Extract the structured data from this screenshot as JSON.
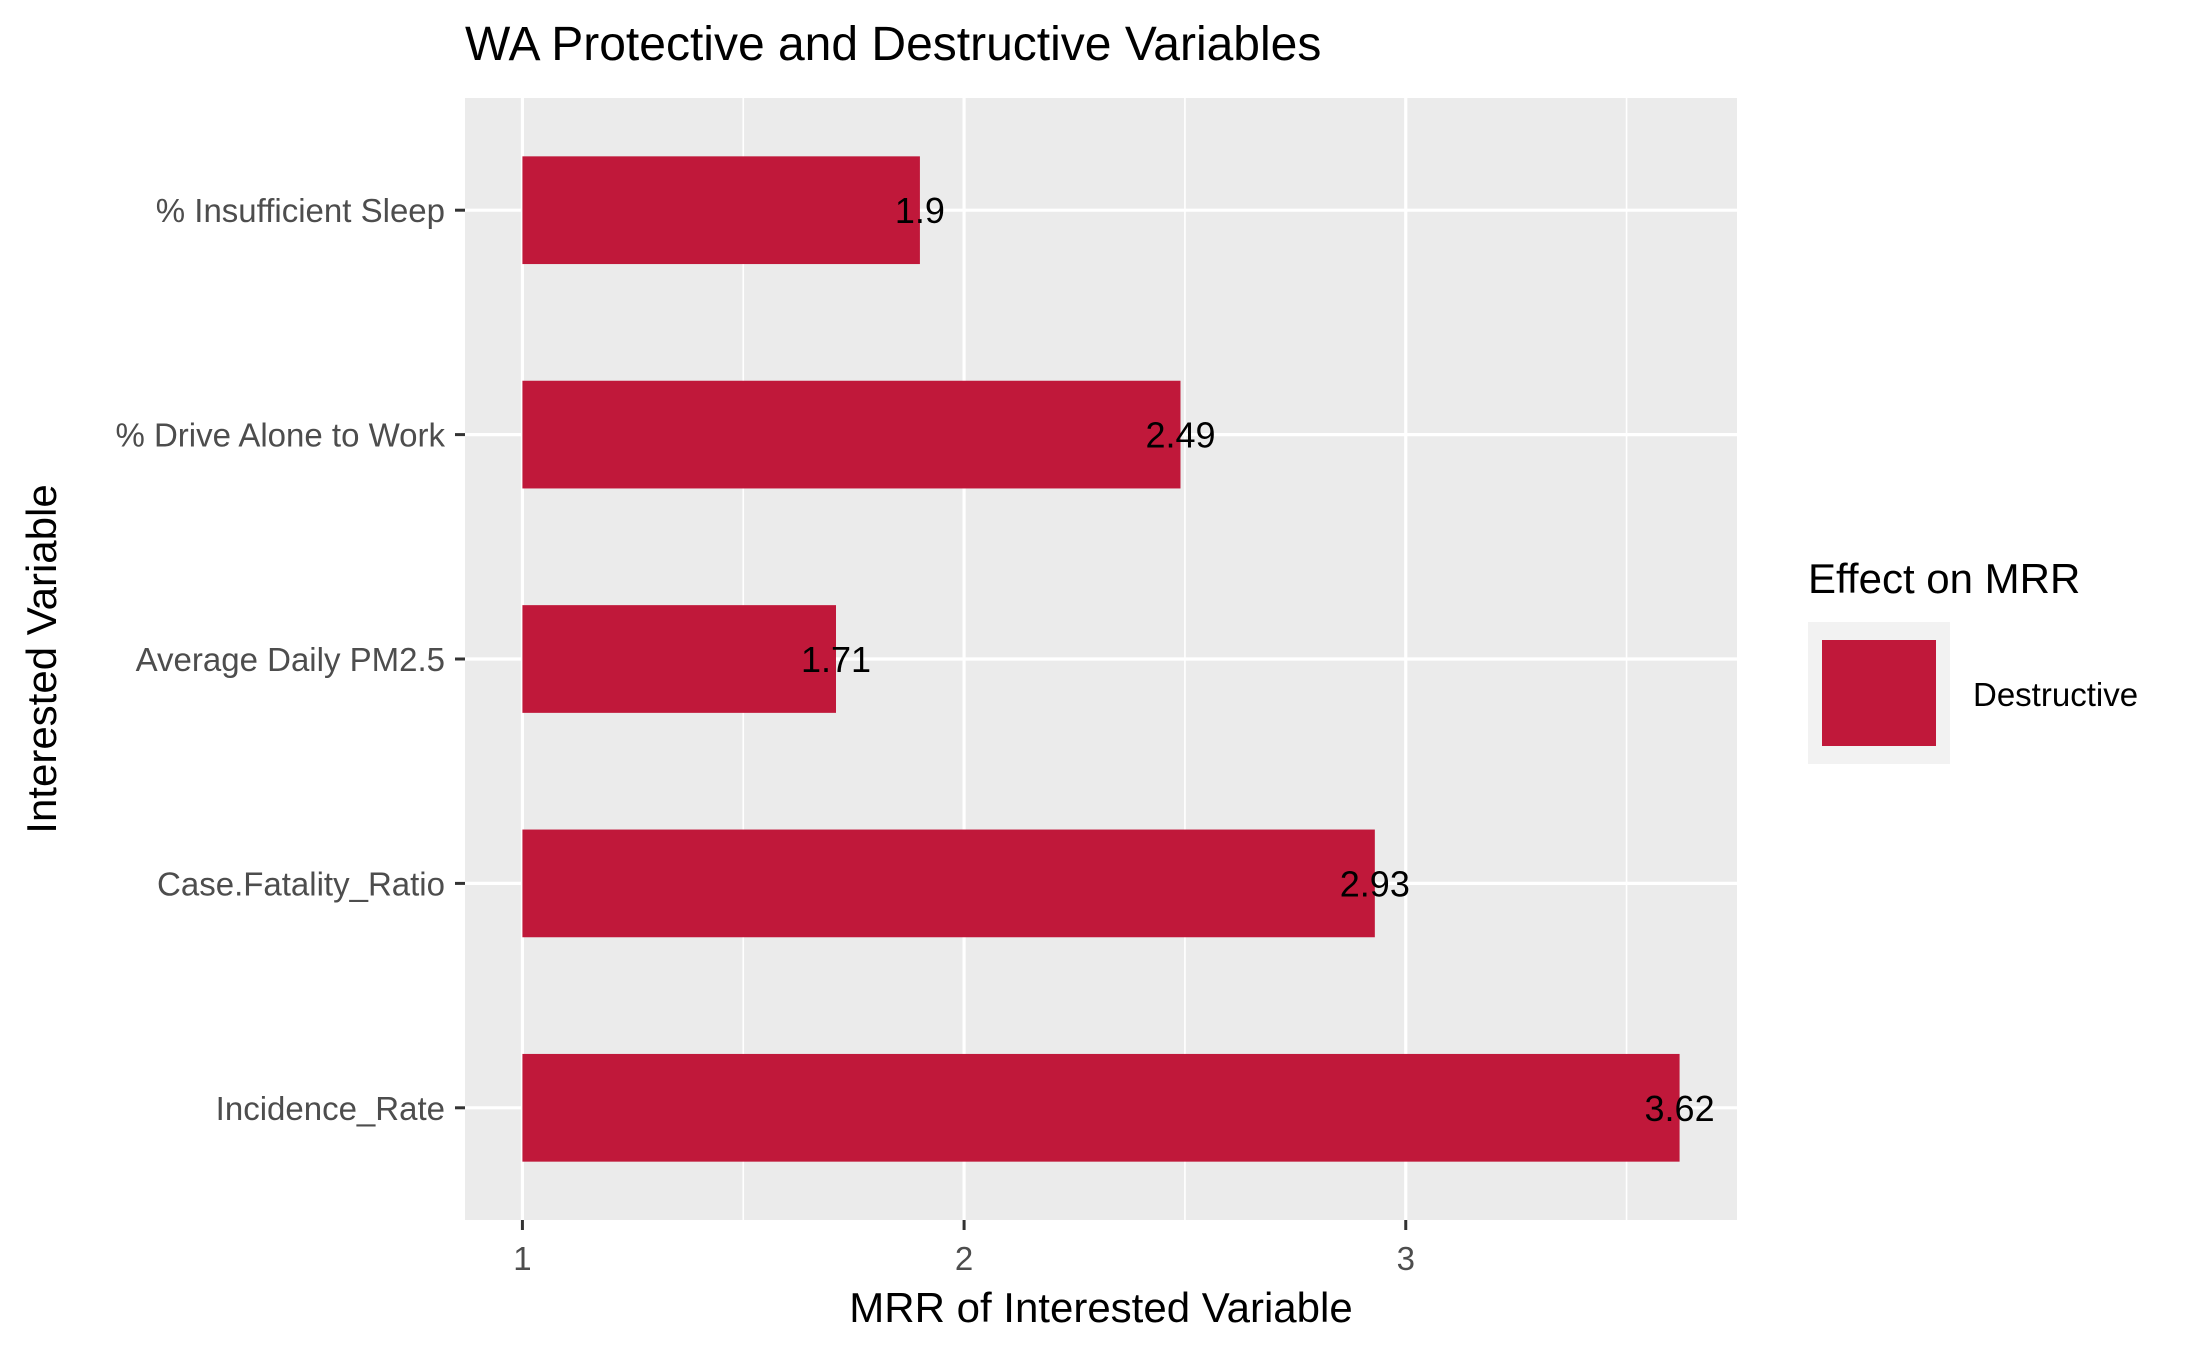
{
  "chart_data": {
    "type": "bar",
    "orientation": "horizontal",
    "title": "WA Protective and Destructive Variables",
    "xlabel": "MRR of Interested Variable",
    "ylabel": "Interested Variable",
    "categories": [
      "% Insufficient Sleep",
      "% Drive Alone to Work",
      "Average Daily PM2.5",
      "Case.Fatality_Ratio",
      "Incidence_Rate"
    ],
    "values": [
      1.9,
      2.49,
      1.71,
      2.93,
      3.62
    ],
    "data_labels": [
      "1.9",
      "2.49",
      "1.71",
      "2.93",
      "3.62"
    ],
    "baseline": 1,
    "xlim": [
      0.87,
      3.75
    ],
    "xticks": [
      1,
      2,
      3
    ],
    "xtick_labels": [
      "1",
      "2",
      "3"
    ],
    "grid": true,
    "legend": {
      "title": "Effect on MRR",
      "position": "right",
      "entries": [
        {
          "label": "Destructive",
          "color": "#C0183A"
        }
      ]
    },
    "colors": {
      "bar": "#C0183A",
      "panel": "#EBEBEB",
      "grid": "#FFFFFF"
    }
  }
}
